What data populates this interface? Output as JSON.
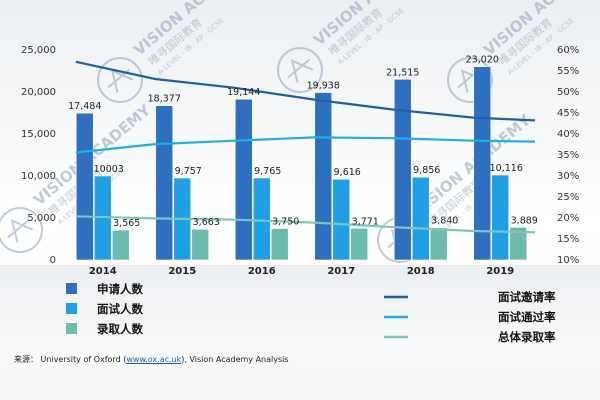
{
  "chart_data": {
    "type": "bar",
    "categories": [
      "2014",
      "2015",
      "2016",
      "2017",
      "2018",
      "2019"
    ],
    "y_ticks": [
      "0",
      "5,000",
      "10,000",
      "15,000",
      "20,000",
      "25,000"
    ],
    "y2_ticks": [
      "10%",
      "15%",
      "20%",
      "25%",
      "30%",
      "35%",
      "40%",
      "45%",
      "50%",
      "55%",
      "60%"
    ],
    "ylim": [
      0,
      25000
    ],
    "y2lim": [
      10,
      60
    ],
    "series": [
      {
        "name": "申请人数",
        "type": "bar",
        "axis": "left",
        "color": "#2e6fbf",
        "values": [
          17484,
          18377,
          19144,
          19938,
          21515,
          23020
        ],
        "labels": [
          "17,484",
          "18,377",
          "19,144",
          "19,938",
          "21,515",
          "23,020"
        ]
      },
      {
        "name": "面试人数",
        "type": "bar",
        "axis": "left",
        "color": "#1e9fe6",
        "values": [
          10003,
          9757,
          9765,
          9616,
          9856,
          10116
        ],
        "labels": [
          "10003",
          "9,757",
          "9,765",
          "9,616",
          "9,856",
          "10,116"
        ]
      },
      {
        "name": "录取人数",
        "type": "bar",
        "axis": "left",
        "color": "#6cbcae",
        "values": [
          3565,
          3663,
          3750,
          3771,
          3840,
          3889
        ],
        "labels": [
          "3,565",
          "3,663",
          "3,750",
          "3,771",
          "3,840",
          "3,889"
        ]
      }
    ],
    "lines": [
      {
        "name": "面试邀请率",
        "type": "line",
        "axis": "right",
        "color": "#1f5fa8",
        "values": [
          57.2,
          53.1,
          51.0,
          48.2,
          45.8,
          43.9
        ]
      },
      {
        "name": "面试通过率",
        "type": "line",
        "axis": "right",
        "color": "#1eaee8",
        "values": [
          35.6,
          37.6,
          38.4,
          39.2,
          39.0,
          38.4
        ]
      },
      {
        "name": "总体录取率",
        "type": "line",
        "axis": "right",
        "color": "#7cc6bb",
        "values": [
          20.4,
          19.9,
          19.6,
          18.9,
          17.8,
          16.9
        ]
      }
    ],
    "legend": "bottom",
    "grid": false
  },
  "source": {
    "prefix": "来源：  University of Oxford (",
    "link": "www.ox.ac.uk",
    "suffix": "), Vision Academy Analysis"
  },
  "watermark": {
    "line1": "VISION ACADEMY",
    "line2": "唯寻国际教育",
    "line3": "A-LEVEL · IB · AP · GCSE"
  }
}
